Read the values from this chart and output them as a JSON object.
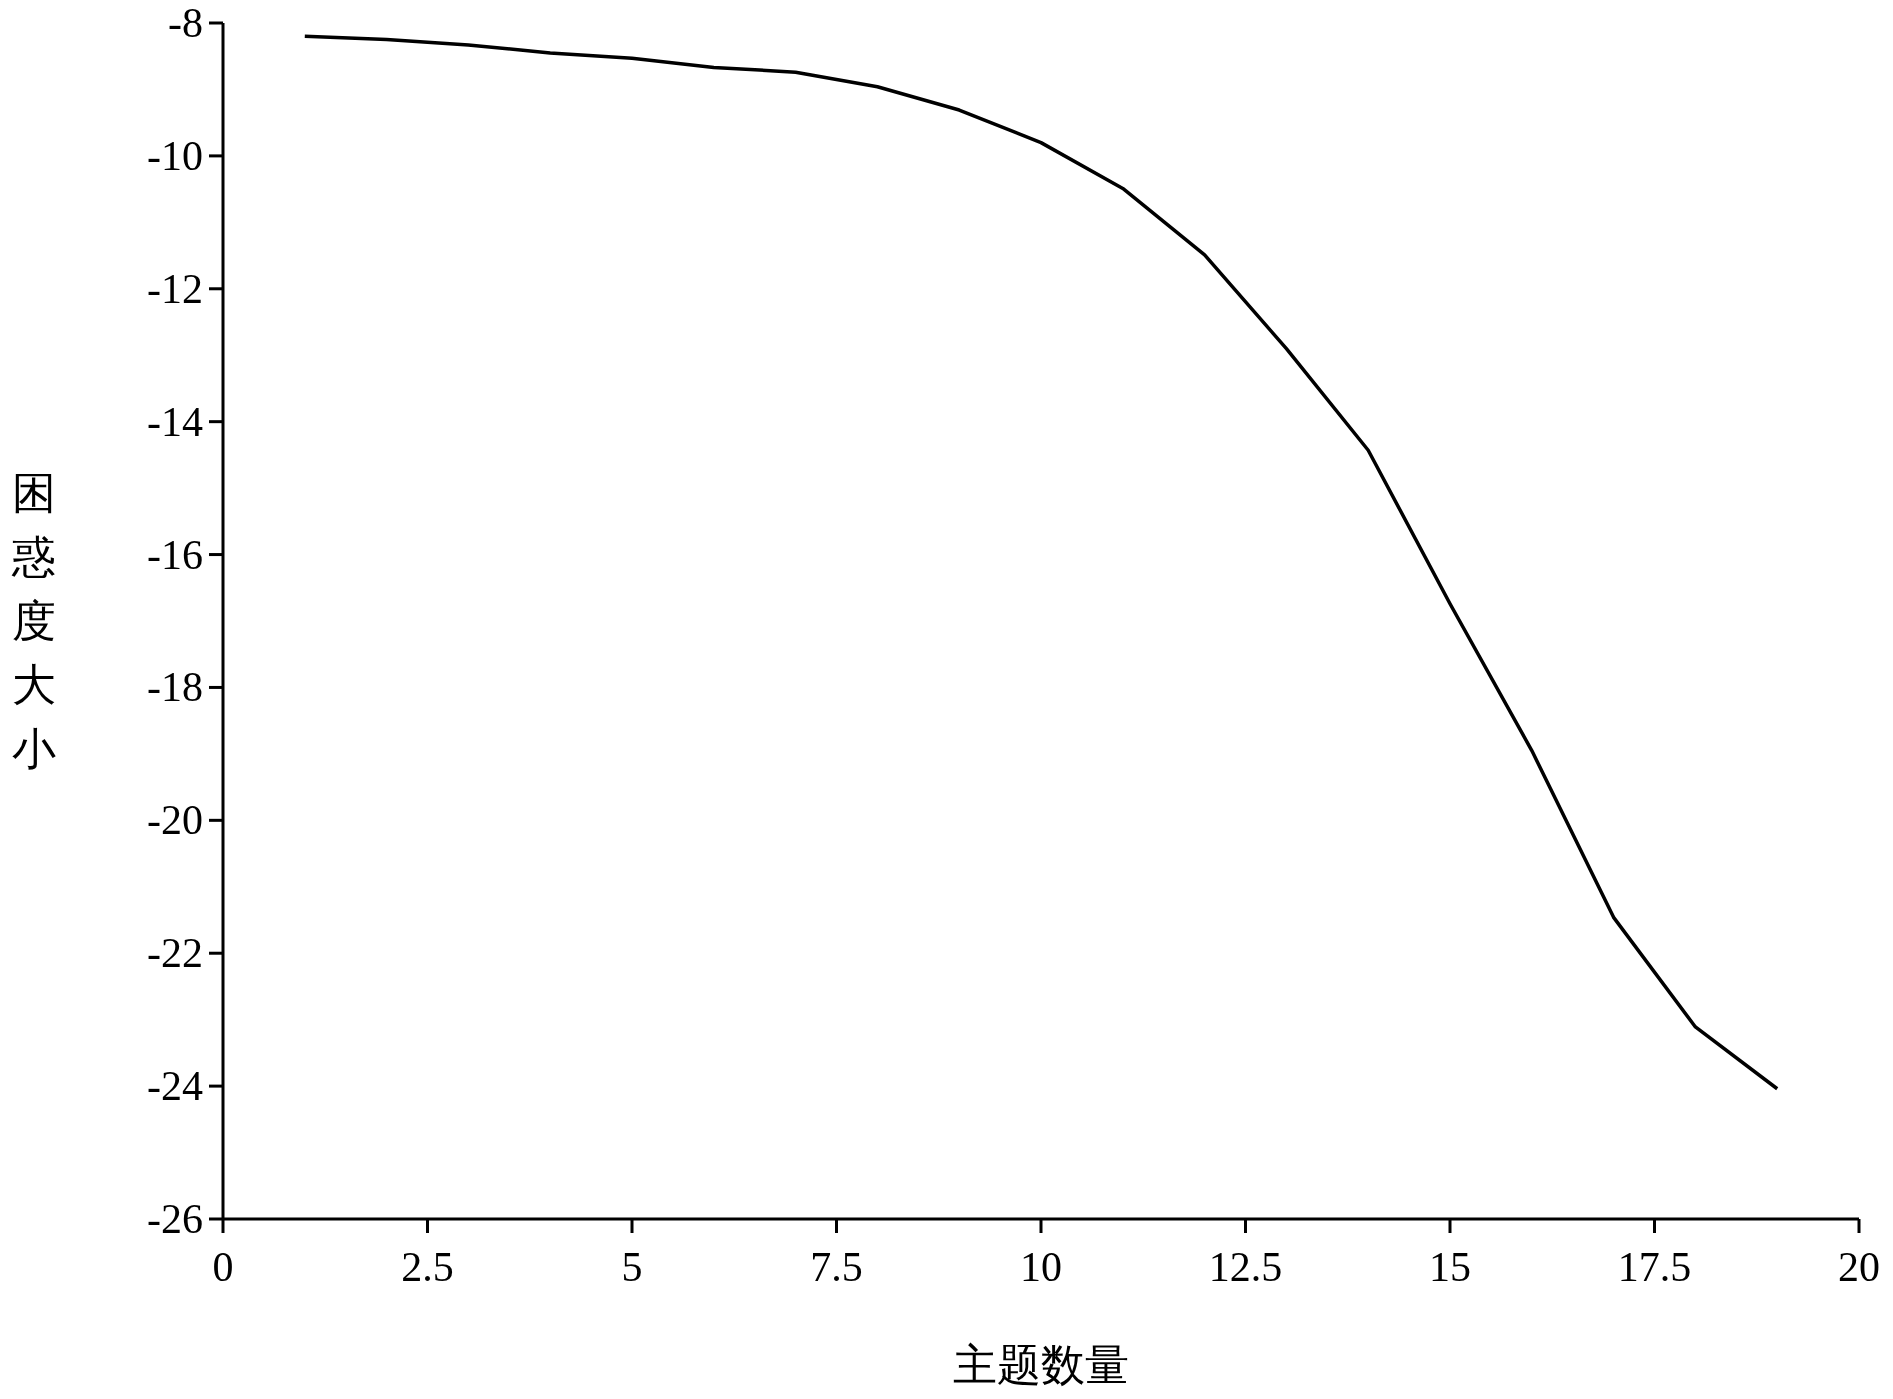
{
  "chart_data": {
    "type": "line",
    "xlabel": "主题数量",
    "ylabel": "困惑度大小",
    "x": [
      1,
      2,
      3,
      4,
      5,
      6,
      7,
      8,
      9,
      10,
      11,
      12,
      13,
      14,
      15,
      16,
      17,
      18,
      19
    ],
    "values": [
      -8.2,
      -8.25,
      -8.33,
      -8.45,
      -8.53,
      -8.67,
      -8.74,
      -8.96,
      -9.31,
      -9.8,
      -10.49,
      -11.49,
      -12.9,
      -14.43,
      -16.74,
      -18.95,
      -21.46,
      -23.11,
      -24.04
    ],
    "color": "#000000",
    "xlim": [
      0,
      20
    ],
    "ylim": [
      -26,
      -8
    ],
    "xticks": [
      0,
      2.5,
      5,
      7.5,
      10,
      12.5,
      15,
      17.5,
      20
    ],
    "yticks": [
      -8,
      -10,
      -12,
      -14,
      -16,
      -18,
      -20,
      -22,
      -24,
      -26
    ]
  }
}
